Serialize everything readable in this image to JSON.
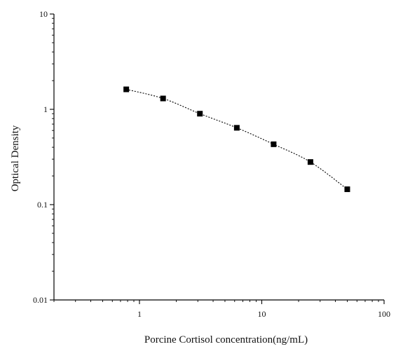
{
  "chart_data": {
    "type": "scatter",
    "title": "",
    "xlabel": "Porcine Cortisol concentration(ng/mL)",
    "ylabel": "Optical Density",
    "x_scale": "log",
    "y_scale": "log",
    "xlim": [
      0.2,
      100
    ],
    "ylim": [
      0.01,
      10
    ],
    "x_ticks": [
      1,
      10,
      100
    ],
    "x_tick_labels": [
      "1",
      "10",
      "100"
    ],
    "y_ticks": [
      0.01,
      0.1,
      1,
      10
    ],
    "y_tick_labels": [
      "0.01",
      "0.1",
      "1",
      "10"
    ],
    "grid": false,
    "legend": "none",
    "series": [
      {
        "x": [
          0.78,
          1.56,
          3.12,
          6.25,
          12.5,
          25,
          50
        ],
        "y": [
          1.62,
          1.3,
          0.9,
          0.64,
          0.43,
          0.28,
          0.145
        ],
        "marker": "square",
        "color": "#000000",
        "fit_line": "dotted"
      }
    ]
  }
}
